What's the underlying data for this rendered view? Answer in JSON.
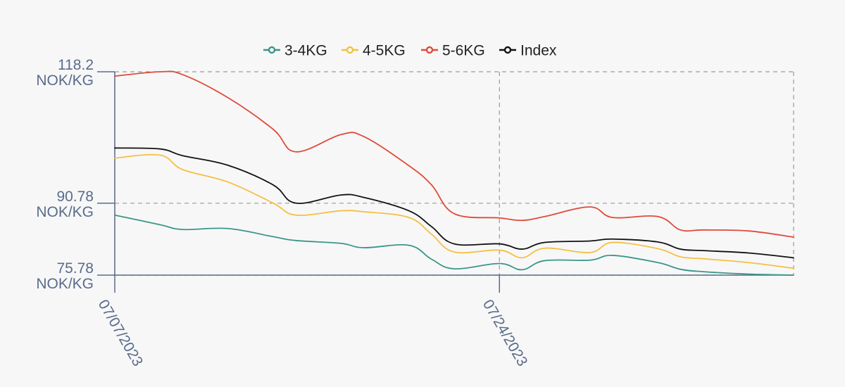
{
  "chart_data": {
    "type": "line",
    "title": "",
    "xlabel": "",
    "ylabel": "",
    "x_ticks": [
      "07/07/2023",
      "07/24/2023"
    ],
    "y_ticks": [
      {
        "value": 118.2,
        "label": "118.2",
        "unit": "NOK/KG"
      },
      {
        "value": 90.78,
        "label": "90.78",
        "unit": "NOK/KG"
      },
      {
        "value": 75.78,
        "label": "75.78",
        "unit": "NOK/KG"
      }
    ],
    "ylim": [
      75.78,
      118.2
    ],
    "xlim": [
      "07/07/2023",
      "08/06/2023"
    ],
    "x": [
      "07/07/2023",
      "07/09/2023",
      "07/10/2023",
      "07/12/2023",
      "07/14/2023",
      "07/15/2023",
      "07/17/2023",
      "07/18/2023",
      "07/20/2023",
      "07/21/2023",
      "07/22/2023",
      "07/24/2023",
      "07/25/2023",
      "07/26/2023",
      "07/28/2023",
      "07/29/2023",
      "07/31/2023",
      "08/01/2023",
      "08/02/2023",
      "08/04/2023",
      "08/06/2023"
    ],
    "series": [
      {
        "name": "3-4KG",
        "color": "#3a9688",
        "values": [
          88.3,
          86.3,
          85.3,
          85.5,
          83.8,
          83.0,
          82.4,
          81.5,
          82.0,
          79.1,
          77.1,
          78.2,
          76.9,
          78.8,
          78.9,
          79.9,
          78.4,
          77.0,
          76.5,
          76.0,
          75.78
        ]
      },
      {
        "name": "4-5KG",
        "color": "#f4c041",
        "values": [
          100.2,
          100.8,
          97.8,
          95.2,
          90.8,
          88.3,
          89.2,
          89.0,
          87.8,
          84.3,
          80.6,
          81.0,
          79.4,
          81.4,
          80.5,
          82.6,
          81.3,
          79.6,
          79.2,
          78.4,
          77.2
        ]
      },
      {
        "name": "5-6KG",
        "color": "#e04a3a",
        "values": [
          117.3,
          118.2,
          117.6,
          112.8,
          106.2,
          101.5,
          105.1,
          104.7,
          98.6,
          94.6,
          88.6,
          87.7,
          87.2,
          88.0,
          90.0,
          87.8,
          88.0,
          85.2,
          85.2,
          85.0,
          83.7
        ]
      },
      {
        "name": "Index",
        "color": "#111111",
        "values": [
          102.3,
          102.1,
          100.7,
          98.7,
          94.6,
          90.8,
          92.5,
          92.0,
          89.2,
          85.9,
          82.3,
          82.3,
          81.2,
          82.6,
          82.9,
          83.3,
          82.7,
          81.2,
          80.9,
          80.4,
          79.4
        ]
      }
    ],
    "legend_position": "top-center",
    "grid": true
  }
}
